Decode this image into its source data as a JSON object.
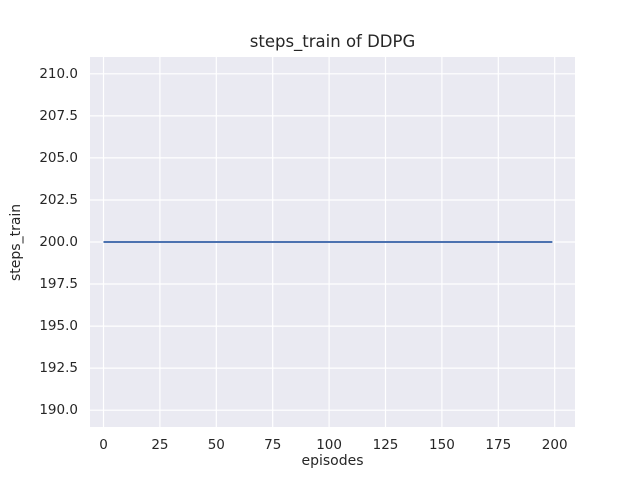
{
  "figure": {
    "background": "#ffffff"
  },
  "chart_data": {
    "type": "line",
    "title": "steps_train of DDPG",
    "xlabel": "episodes",
    "ylabel": "steps_train",
    "plot_background": "#eaeaf2",
    "grid": true,
    "grid_color": "#ffffff",
    "text_color": "#262626",
    "legend": "none",
    "xlim": [
      -6,
      209
    ],
    "ylim": [
      189,
      211
    ],
    "xtick_values": [
      0,
      25,
      50,
      75,
      100,
      125,
      150,
      175,
      200
    ],
    "xtick_labels": [
      "0",
      "25",
      "50",
      "75",
      "100",
      "125",
      "150",
      "175",
      "200"
    ],
    "ytick_values": [
      190.0,
      192.5,
      195.0,
      197.5,
      200.0,
      202.5,
      205.0,
      207.5,
      210.0
    ],
    "ytick_labels": [
      "190.0",
      "192.5",
      "195.0",
      "197.5",
      "200.0",
      "202.5",
      "205.0",
      "207.5",
      "210.0"
    ],
    "series": [
      {
        "name": "steps_train",
        "color": "#4c72b0",
        "line_width": 2.1,
        "x": [
          0,
          199
        ],
        "y": [
          200,
          200
        ]
      }
    ]
  }
}
